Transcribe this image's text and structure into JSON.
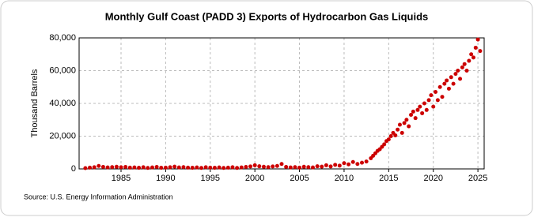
{
  "chart_data": {
    "type": "scatter",
    "title": "Monthly Gulf Coast (PADD 3) Exports of Hydrocarbon Gas Liquids",
    "y_label": "Thousand Barrels",
    "source": "Source: U.S. Energy Information Administration",
    "color": "#cc0000",
    "grid": true,
    "xlim": [
      1980.3,
      2025.7
    ],
    "xticks": [
      1985,
      1990,
      1995,
      2000,
      2005,
      2010,
      2015,
      2020,
      2025
    ],
    "ylim": [
      0,
      80000
    ],
    "yticks": [
      0,
      {
        "value": 20000,
        "label": "20,000"
      },
      {
        "value": 40000,
        "label": "40,000"
      },
      {
        "value": 60000,
        "label": "60,000"
      },
      {
        "value": 80000,
        "label": "80,000"
      }
    ],
    "x": [
      1981.0,
      1981.5,
      1982.0,
      1982.5,
      1983.0,
      1983.5,
      1984.0,
      1984.5,
      1985.0,
      1985.5,
      1986.0,
      1986.5,
      1987.0,
      1987.5,
      1988.0,
      1988.5,
      1989.0,
      1989.5,
      1990.0,
      1990.5,
      1991.0,
      1991.5,
      1992.0,
      1992.5,
      1993.0,
      1993.5,
      1994.0,
      1994.5,
      1995.0,
      1995.5,
      1996.0,
      1996.5,
      1997.0,
      1997.5,
      1998.0,
      1998.5,
      1999.0,
      1999.5,
      2000.0,
      2000.5,
      2001.0,
      2001.5,
      2002.0,
      2002.5,
      2003.0,
      2003.5,
      2004.0,
      2004.5,
      2005.0,
      2005.5,
      2006.0,
      2006.5,
      2007.0,
      2007.5,
      2008.0,
      2008.5,
      2009.0,
      2009.5,
      2010.0,
      2010.5,
      2011.0,
      2011.5,
      2012.0,
      2012.5,
      2013.0,
      2013.25,
      2013.5,
      2013.75,
      2014.0,
      2014.25,
      2014.5,
      2014.75,
      2015.0,
      2015.25,
      2015.5,
      2015.75,
      2016.0,
      2016.25,
      2016.5,
      2016.75,
      2017.0,
      2017.25,
      2017.5,
      2017.75,
      2018.0,
      2018.25,
      2018.5,
      2018.75,
      2019.0,
      2019.25,
      2019.5,
      2019.75,
      2020.0,
      2020.25,
      2020.5,
      2020.75,
      2021.0,
      2021.25,
      2021.5,
      2021.75,
      2022.0,
      2022.25,
      2022.5,
      2022.75,
      2023.0,
      2023.25,
      2023.5,
      2023.75,
      2024.0,
      2024.25,
      2024.5,
      2024.75,
      2025.0,
      2025.25
    ],
    "values": [
      500,
      800,
      1000,
      1800,
      1200,
      900,
      1100,
      1300,
      1000,
      1200,
      800,
      900,
      700,
      1000,
      600,
      900,
      1200,
      700,
      800,
      1000,
      1400,
      900,
      1100,
      800,
      700,
      900,
      600,
      1000,
      800,
      700,
      900,
      600,
      800,
      1000,
      600,
      900,
      1200,
      1500,
      2200,
      1600,
      1300,
      1100,
      1500,
      1800,
      3000,
      1200,
      900,
      1100,
      800,
      1300,
      1100,
      900,
      1600,
      1400,
      2200,
      1500,
      2500,
      2000,
      3500,
      2800,
      4200,
      3000,
      3800,
      4500,
      6500,
      8000,
      9500,
      11000,
      12000,
      13500,
      15000,
      17000,
      18000,
      20000,
      22000,
      20500,
      24000,
      27000,
      22000,
      28000,
      30000,
      26000,
      33000,
      35000,
      31000,
      36000,
      38000,
      34000,
      40000,
      36000,
      42000,
      45000,
      38000,
      47000,
      42000,
      50000,
      44000,
      52000,
      54000,
      49000,
      56000,
      52000,
      58000,
      60000,
      55000,
      62000,
      64000,
      60000,
      66000,
      70000,
      68000,
      74000,
      79000,
      72000
    ]
  }
}
